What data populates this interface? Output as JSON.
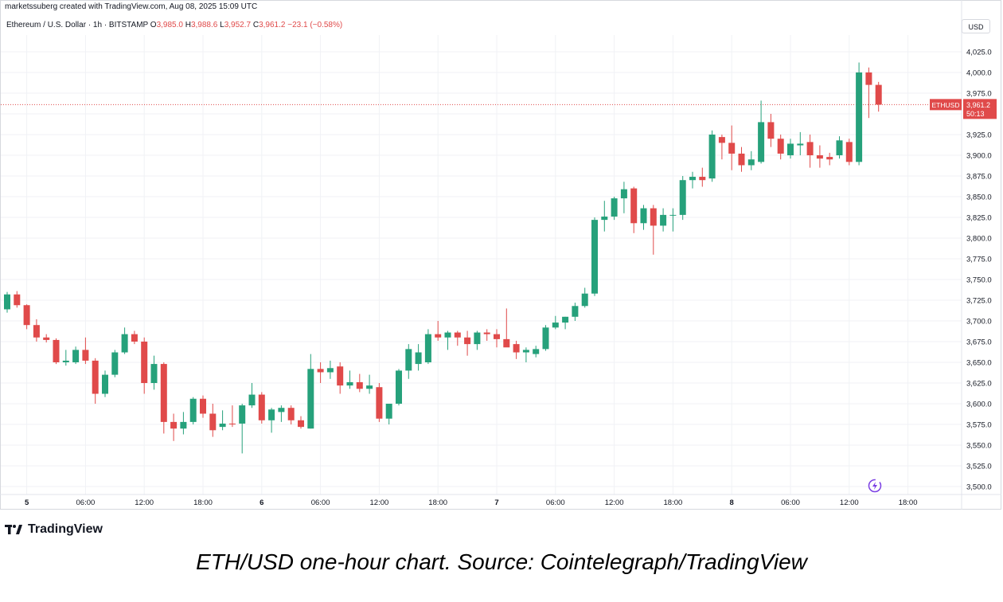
{
  "header": {
    "credit": "marketssuberg created with TradingView.com, Aug 08, 2025 15:09 UTC",
    "symbol_label": "Ethereum / U.S. Dollar · 1h · BITSTAMP",
    "ohlc": [
      {
        "label": "O",
        "value": "3,985.0"
      },
      {
        "label": "H",
        "value": "3,988.6"
      },
      {
        "label": "L",
        "value": "3,952.7"
      },
      {
        "label": "C",
        "value": "3,961.2"
      }
    ],
    "change": "−23.1 (−0.58%)",
    "currency_button": "USD"
  },
  "price_tag": {
    "symbol": "ETHUSD",
    "price": "3,961.2",
    "countdown": "50:13",
    "color": "#e04a4a"
  },
  "colors": {
    "up": "#26a17b",
    "down": "#e04a4a"
  },
  "icons": {
    "logo": "tradingview-logo-icon",
    "replay": "replay-lightning-icon"
  },
  "chart_data": {
    "type": "candlestick",
    "y_ticks": [
      3500,
      3525,
      3550,
      3575,
      3600,
      3625,
      3650,
      3675,
      3700,
      3725,
      3750,
      3775,
      3800,
      3825,
      3850,
      3875,
      3900,
      3925,
      3950,
      3975,
      4000,
      4025
    ],
    "y_tick_labels": [
      "3,500.0",
      "3,525.0",
      "3,550.0",
      "3,575.0",
      "3,600.0",
      "3,625.0",
      "3,650.0",
      "3,675.0",
      "3,700.0",
      "3,725.0",
      "3,750.0",
      "3,775.0",
      "3,800.0",
      "3,825.0",
      "3,850.0",
      "3,875.0",
      "3,900.0",
      "3,925.0",
      "3,950.0",
      "3,975.0",
      "4,000.0",
      "4,025.0"
    ],
    "x_ticks": [
      {
        "i": 2,
        "label": "5",
        "bold": true
      },
      {
        "i": 8,
        "label": "06:00"
      },
      {
        "i": 14,
        "label": "12:00"
      },
      {
        "i": 20,
        "label": "18:00"
      },
      {
        "i": 26,
        "label": "6",
        "bold": true
      },
      {
        "i": 32,
        "label": "06:00"
      },
      {
        "i": 38,
        "label": "12:00"
      },
      {
        "i": 44,
        "label": "18:00"
      },
      {
        "i": 50,
        "label": "7",
        "bold": true
      },
      {
        "i": 56,
        "label": "06:00"
      },
      {
        "i": 62,
        "label": "12:00"
      },
      {
        "i": 68,
        "label": "18:00"
      },
      {
        "i": 74,
        "label": "8",
        "bold": true
      },
      {
        "i": 80,
        "label": "06:00"
      },
      {
        "i": 86,
        "label": "12:00"
      },
      {
        "i": 92,
        "label": "18:00"
      }
    ],
    "last_price": 3961.2,
    "candles": [
      {
        "o": 3714,
        "h": 3735,
        "l": 3710,
        "c": 3732
      },
      {
        "o": 3732,
        "h": 3736,
        "l": 3716,
        "c": 3719
      },
      {
        "o": 3719,
        "h": 3720,
        "l": 3690,
        "c": 3695
      },
      {
        "o": 3695,
        "h": 3702,
        "l": 3675,
        "c": 3680
      },
      {
        "o": 3680,
        "h": 3684,
        "l": 3674,
        "c": 3677
      },
      {
        "o": 3677,
        "h": 3679,
        "l": 3648,
        "c": 3650
      },
      {
        "o": 3650,
        "h": 3665,
        "l": 3646,
        "c": 3652
      },
      {
        "o": 3650,
        "h": 3669,
        "l": 3648,
        "c": 3665
      },
      {
        "o": 3665,
        "h": 3680,
        "l": 3648,
        "c": 3652
      },
      {
        "o": 3652,
        "h": 3655,
        "l": 3600,
        "c": 3612
      },
      {
        "o": 3612,
        "h": 3640,
        "l": 3608,
        "c": 3635
      },
      {
        "o": 3635,
        "h": 3665,
        "l": 3632,
        "c": 3662
      },
      {
        "o": 3662,
        "h": 3692,
        "l": 3660,
        "c": 3684
      },
      {
        "o": 3684,
        "h": 3688,
        "l": 3672,
        "c": 3675
      },
      {
        "o": 3675,
        "h": 3680,
        "l": 3612,
        "c": 3625
      },
      {
        "o": 3625,
        "h": 3658,
        "l": 3617,
        "c": 3648
      },
      {
        "o": 3648,
        "h": 3650,
        "l": 3564,
        "c": 3578
      },
      {
        "o": 3578,
        "h": 3588,
        "l": 3555,
        "c": 3570
      },
      {
        "o": 3570,
        "h": 3590,
        "l": 3563,
        "c": 3578
      },
      {
        "o": 3578,
        "h": 3608,
        "l": 3575,
        "c": 3606
      },
      {
        "o": 3606,
        "h": 3610,
        "l": 3583,
        "c": 3588
      },
      {
        "o": 3588,
        "h": 3600,
        "l": 3560,
        "c": 3568
      },
      {
        "o": 3572,
        "h": 3592,
        "l": 3568,
        "c": 3576
      },
      {
        "o": 3576,
        "h": 3598,
        "l": 3572,
        "c": 3575
      },
      {
        "o": 3576,
        "h": 3600,
        "l": 3540,
        "c": 3598
      },
      {
        "o": 3598,
        "h": 3625,
        "l": 3595,
        "c": 3611
      },
      {
        "o": 3611,
        "h": 3614,
        "l": 3576,
        "c": 3580
      },
      {
        "o": 3580,
        "h": 3595,
        "l": 3565,
        "c": 3593
      },
      {
        "o": 3590,
        "h": 3598,
        "l": 3578,
        "c": 3595
      },
      {
        "o": 3595,
        "h": 3598,
        "l": 3575,
        "c": 3580
      },
      {
        "o": 3580,
        "h": 3585,
        "l": 3570,
        "c": 3572
      },
      {
        "o": 3570,
        "h": 3660,
        "l": 3570,
        "c": 3642
      },
      {
        "o": 3642,
        "h": 3650,
        "l": 3625,
        "c": 3638
      },
      {
        "o": 3638,
        "h": 3652,
        "l": 3630,
        "c": 3643
      },
      {
        "o": 3645,
        "h": 3650,
        "l": 3612,
        "c": 3622
      },
      {
        "o": 3622,
        "h": 3640,
        "l": 3618,
        "c": 3626
      },
      {
        "o": 3626,
        "h": 3636,
        "l": 3614,
        "c": 3618
      },
      {
        "o": 3618,
        "h": 3635,
        "l": 3612,
        "c": 3622
      },
      {
        "o": 3620,
        "h": 3625,
        "l": 3578,
        "c": 3582
      },
      {
        "o": 3582,
        "h": 3598,
        "l": 3575,
        "c": 3600
      },
      {
        "o": 3600,
        "h": 3642,
        "l": 3598,
        "c": 3640
      },
      {
        "o": 3640,
        "h": 3672,
        "l": 3630,
        "c": 3666
      },
      {
        "o": 3648,
        "h": 3672,
        "l": 3640,
        "c": 3662
      },
      {
        "o": 3650,
        "h": 3690,
        "l": 3648,
        "c": 3684
      },
      {
        "o": 3684,
        "h": 3700,
        "l": 3676,
        "c": 3680
      },
      {
        "o": 3680,
        "h": 3688,
        "l": 3665,
        "c": 3686
      },
      {
        "o": 3686,
        "h": 3688,
        "l": 3670,
        "c": 3680
      },
      {
        "o": 3680,
        "h": 3688,
        "l": 3658,
        "c": 3672
      },
      {
        "o": 3672,
        "h": 3688,
        "l": 3665,
        "c": 3686
      },
      {
        "o": 3686,
        "h": 3690,
        "l": 3676,
        "c": 3684
      },
      {
        "o": 3684,
        "h": 3690,
        "l": 3668,
        "c": 3678
      },
      {
        "o": 3678,
        "h": 3715,
        "l": 3672,
        "c": 3668
      },
      {
        "o": 3672,
        "h": 3676,
        "l": 3654,
        "c": 3662
      },
      {
        "o": 3662,
        "h": 3668,
        "l": 3650,
        "c": 3665
      },
      {
        "o": 3660,
        "h": 3670,
        "l": 3656,
        "c": 3666
      },
      {
        "o": 3666,
        "h": 3695,
        "l": 3664,
        "c": 3692
      },
      {
        "o": 3692,
        "h": 3706,
        "l": 3690,
        "c": 3698
      },
      {
        "o": 3698,
        "h": 3705,
        "l": 3690,
        "c": 3705
      },
      {
        "o": 3705,
        "h": 3722,
        "l": 3700,
        "c": 3718
      },
      {
        "o": 3718,
        "h": 3740,
        "l": 3716,
        "c": 3733
      },
      {
        "o": 3733,
        "h": 3825,
        "l": 3730,
        "c": 3822
      },
      {
        "o": 3822,
        "h": 3845,
        "l": 3808,
        "c": 3826
      },
      {
        "o": 3826,
        "h": 3850,
        "l": 3822,
        "c": 3848
      },
      {
        "o": 3848,
        "h": 3868,
        "l": 3830,
        "c": 3859
      },
      {
        "o": 3860,
        "h": 3862,
        "l": 3806,
        "c": 3818
      },
      {
        "o": 3818,
        "h": 3840,
        "l": 3810,
        "c": 3836
      },
      {
        "o": 3836,
        "h": 3840,
        "l": 3780,
        "c": 3815
      },
      {
        "o": 3815,
        "h": 3836,
        "l": 3808,
        "c": 3828
      },
      {
        "o": 3828,
        "h": 3836,
        "l": 3808,
        "c": 3828
      },
      {
        "o": 3828,
        "h": 3875,
        "l": 3822,
        "c": 3870
      },
      {
        "o": 3870,
        "h": 3880,
        "l": 3860,
        "c": 3874
      },
      {
        "o": 3874,
        "h": 3885,
        "l": 3862,
        "c": 3870
      },
      {
        "o": 3872,
        "h": 3930,
        "l": 3868,
        "c": 3925
      },
      {
        "o": 3922,
        "h": 3925,
        "l": 3895,
        "c": 3915
      },
      {
        "o": 3915,
        "h": 3936,
        "l": 3882,
        "c": 3902
      },
      {
        "o": 3902,
        "h": 3910,
        "l": 3880,
        "c": 3888
      },
      {
        "o": 3888,
        "h": 3905,
        "l": 3882,
        "c": 3895
      },
      {
        "o": 3892,
        "h": 3966,
        "l": 3890,
        "c": 3940
      },
      {
        "o": 3940,
        "h": 3950,
        "l": 3910,
        "c": 3920
      },
      {
        "o": 3920,
        "h": 3925,
        "l": 3895,
        "c": 3902
      },
      {
        "o": 3900,
        "h": 3920,
        "l": 3896,
        "c": 3914
      },
      {
        "o": 3912,
        "h": 3928,
        "l": 3900,
        "c": 3914
      },
      {
        "o": 3916,
        "h": 3925,
        "l": 3885,
        "c": 3900
      },
      {
        "o": 3900,
        "h": 3912,
        "l": 3885,
        "c": 3896
      },
      {
        "o": 3898,
        "h": 3903,
        "l": 3888,
        "c": 3895
      },
      {
        "o": 3900,
        "h": 3923,
        "l": 3896,
        "c": 3918
      },
      {
        "o": 3916,
        "h": 3920,
        "l": 3888,
        "c": 3892
      },
      {
        "o": 3892,
        "h": 4012,
        "l": 3888,
        "c": 4000
      },
      {
        "o": 4000,
        "h": 4006,
        "l": 3945,
        "c": 3985
      },
      {
        "o": 3985,
        "h": 3988.6,
        "l": 3952.7,
        "c": 3961.2
      }
    ]
  },
  "footer": {
    "logo_text": "TradingView",
    "caption": "ETH/USD one-hour chart. Source: Cointelegraph/TradingView"
  }
}
